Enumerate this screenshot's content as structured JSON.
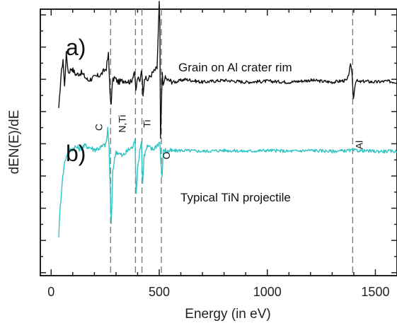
{
  "chart_data": {
    "type": "line",
    "title": "",
    "xlabel": "Energy (in eV)",
    "ylabel": "dEN(E)/dE",
    "xlim": [
      -50,
      1600
    ],
    "x_ticks": [
      0,
      500,
      1000,
      1500
    ],
    "y_scale": "arbitrary units, no tick labels",
    "grid": false,
    "legend": "none",
    "panel_labels": [
      "a)",
      "b)"
    ],
    "series": [
      {
        "name": "Grain on Al crater rim",
        "panel": "a)",
        "color": "#111111",
        "baseline": 0.62,
        "x": [
          35,
          45,
          55,
          62,
          70,
          80,
          95,
          115,
          140,
          170,
          200,
          230,
          255,
          265,
          272,
          278,
          283,
          292,
          310,
          340,
          370,
          385,
          392,
          400,
          410,
          418,
          425,
          432,
          445,
          470,
          490,
          500,
          503,
          506,
          510,
          514,
          518,
          525,
          540,
          570,
          620,
          700,
          800,
          900,
          1000,
          1100,
          1200,
          1300,
          1370,
          1385,
          1392,
          1398,
          1403,
          1410,
          1425,
          1450,
          1500,
          1550,
          1600
        ],
        "values": [
          -0.3,
          0.05,
          0.25,
          -0.05,
          0.3,
          0.1,
          0.15,
          0.08,
          0.1,
          0.02,
          0.05,
          0.08,
          0.15,
          0.3,
          -0.1,
          -0.25,
          0.0,
          0.05,
          0.0,
          0.02,
          0.0,
          0.12,
          -0.1,
          0.05,
          0.0,
          0.15,
          -0.12,
          0.05,
          0.02,
          0.1,
          0.15,
          0.85,
          0.6,
          -0.6,
          -0.25,
          0.1,
          -0.05,
          0.05,
          0.02,
          0.0,
          0.03,
          0.0,
          0.02,
          0.0,
          0.01,
          0.0,
          0.02,
          0.0,
          0.02,
          0.18,
          0.1,
          -0.18,
          -0.08,
          0.02,
          0.0,
          0.01,
          0.0,
          0.01,
          0.0
        ]
      },
      {
        "name": "Typical TiN projectile",
        "panel": "b)",
        "color": "#2ec4c4",
        "baseline": -0.12,
        "x": [
          35,
          42,
          50,
          60,
          70,
          80,
          95,
          110,
          130,
          160,
          200,
          230,
          255,
          262,
          268,
          273,
          278,
          285,
          300,
          330,
          360,
          380,
          388,
          393,
          400,
          410,
          418,
          423,
          430,
          445,
          470,
          495,
          503,
          508,
          513,
          520,
          540,
          600,
          700,
          800,
          900,
          1000,
          1100,
          1200,
          1300,
          1400,
          1500,
          1600
        ],
        "values": [
          -0.9,
          -0.6,
          -0.35,
          -0.15,
          -0.05,
          0.0,
          0.02,
          0.05,
          0.03,
          0.06,
          0.02,
          0.04,
          0.08,
          0.25,
          0.05,
          -0.4,
          -0.8,
          -0.2,
          0.0,
          -0.05,
          0.02,
          0.05,
          0.15,
          -0.45,
          -0.2,
          0.02,
          0.1,
          -0.35,
          -0.05,
          0.05,
          0.02,
          0.08,
          0.1,
          -0.15,
          -0.25,
          0.02,
          0.0,
          0.01,
          0.0,
          0.01,
          0.0,
          0.01,
          0.0,
          0.01,
          0.0,
          0.01,
          0.0,
          0.0
        ]
      }
    ],
    "reference_lines": [
      {
        "label": "C",
        "x": 275
      },
      {
        "label": "N,Ti",
        "x": 390
      },
      {
        "label": "Ti",
        "x": 420
      },
      {
        "label": "O",
        "x": 510
      },
      {
        "label": "Al",
        "x": 1395
      }
    ],
    "annotations": {
      "series_a": "Grain on Al crater rim",
      "series_b": "Typical TiN projectile"
    }
  }
}
